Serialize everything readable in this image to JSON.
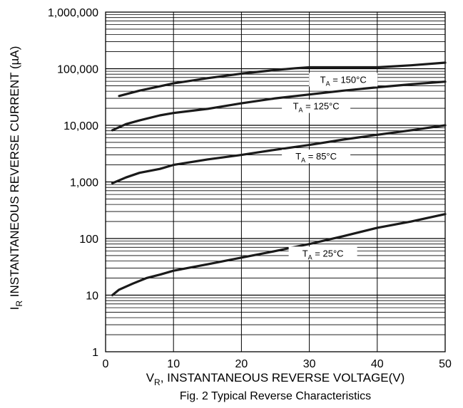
{
  "chart_data": {
    "type": "line",
    "title": "",
    "caption": "Fig. 2  Typical Reverse Characteristics",
    "xlabel": {
      "sym": "V",
      "sub": "R",
      "rest": ", INSTANTANEOUS REVERSE VOLTAGE(V)"
    },
    "ylabel": {
      "sym": "I",
      "sub": "R",
      "rest": " INSTANTANEOUS REVERSE CURRENT (µA)"
    },
    "xlim": [
      0,
      50
    ],
    "ylim": [
      1,
      1000000
    ],
    "yscale": "log",
    "grid": true,
    "x_ticks": [
      "0",
      "10",
      "20",
      "30",
      "40",
      "50"
    ],
    "y_ticks": [
      "1",
      "10",
      "100",
      "1,000",
      "10,000",
      "100,000",
      "1,000,000"
    ],
    "series": [
      {
        "label": {
          "sym": "T",
          "sub": "A",
          "rest": " = 150°C"
        },
        "x": [
          2,
          5,
          10,
          15,
          20,
          25,
          28,
          30,
          35,
          40,
          45,
          50
        ],
        "y": [
          33000,
          41000,
          55000,
          68000,
          82000,
          95000,
          102000,
          106000,
          106000,
          106000,
          115000,
          128000
        ]
      },
      {
        "label": {
          "sym": "T",
          "sub": "A",
          "rest": " = 125°C"
        },
        "x": [
          1,
          3,
          5,
          8,
          10,
          15,
          20,
          25,
          30,
          35,
          40,
          45,
          50
        ],
        "y": [
          8200,
          10500,
          12200,
          15000,
          16500,
          19500,
          24500,
          30000,
          35000,
          41000,
          47000,
          53000,
          59000
        ]
      },
      {
        "label": {
          "sym": "T",
          "sub": "A",
          "rest": " = 85°C"
        },
        "x": [
          1,
          3,
          5,
          8,
          10,
          15,
          20,
          25,
          30,
          35,
          40,
          45,
          50
        ],
        "y": [
          950,
          1200,
          1450,
          1700,
          2000,
          2500,
          3000,
          3700,
          4500,
          5600,
          6800,
          8200,
          10000
        ]
      },
      {
        "label": {
          "sym": "T",
          "sub": "A",
          "rest": " = 25°C"
        },
        "x": [
          1,
          2,
          4,
          6,
          8,
          10,
          15,
          20,
          25,
          30,
          35,
          40,
          45,
          50
        ],
        "y": [
          10,
          12.5,
          16,
          20,
          23,
          27,
          35,
          46,
          60,
          80,
          110,
          155,
          200,
          270
        ]
      }
    ]
  },
  "colors": {
    "line": "#1a1a1a",
    "grid": "#000000",
    "background": "#ffffff"
  }
}
